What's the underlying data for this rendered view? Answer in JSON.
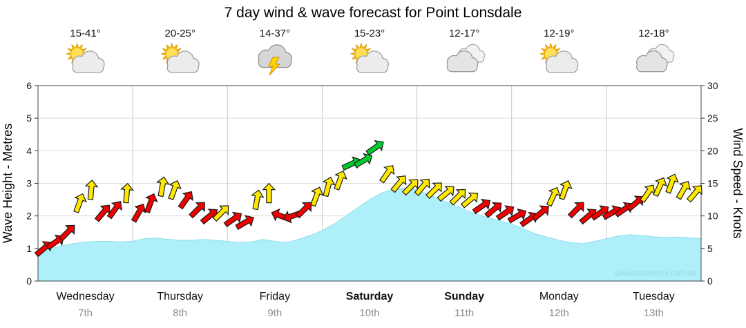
{
  "title": "7 day wind & wave forecast for Point Lonsdale",
  "watermark": "www.seabreeze.com.au",
  "axes": {
    "left_label": "Wave Height - Metres",
    "right_label": "Wind Speed - Knots",
    "wave_ticks": [
      0,
      1,
      2,
      3,
      4,
      5,
      6
    ],
    "knot_ticks": [
      0,
      5,
      10,
      15,
      20,
      25,
      30
    ]
  },
  "days": [
    {
      "name": "Wednesday",
      "date": "7th",
      "temp": "15-41°",
      "icon": "partly-cloudy",
      "weekend": false
    },
    {
      "name": "Thursday",
      "date": "8th",
      "temp": "20-25°",
      "icon": "partly-cloudy",
      "weekend": false
    },
    {
      "name": "Friday",
      "date": "9th",
      "temp": "14-37°",
      "icon": "thunderstorm",
      "weekend": false
    },
    {
      "name": "Saturday",
      "date": "10th",
      "temp": "15-23°",
      "icon": "partly-cloudy",
      "weekend": true
    },
    {
      "name": "Sunday",
      "date": "11th",
      "temp": "12-17°",
      "icon": "cloudy",
      "weekend": true
    },
    {
      "name": "Monday",
      "date": "12th",
      "temp": "12-19°",
      "icon": "partly-cloudy",
      "weekend": false
    },
    {
      "name": "Tuesday",
      "date": "13th",
      "temp": "12-18°",
      "icon": "cloudy",
      "weekend": false
    }
  ],
  "colors": {
    "wave_fill": "#AEEFFA",
    "arrow_red": "#F20000",
    "arrow_yellow": "#FFE800",
    "arrow_green": "#00CC2C",
    "grid": "#DADADA",
    "day_grid": "#C9C9C9",
    "border": "#444444",
    "date_text": "#8C8C8C",
    "watermark": "#96D8E2",
    "text": "#111111"
  },
  "chart_data": {
    "type": "area+wind-arrows",
    "title": "7 day wind & wave forecast for Point Lonsdale",
    "x_categories": [
      "Wednesday 7th",
      "Thursday 8th",
      "Friday 9th",
      "Saturday 10th",
      "Sunday 11th",
      "Monday 12th",
      "Tuesday 13th"
    ],
    "samples_per_day": 8,
    "grid": true,
    "wave": {
      "label": "Wave Height - Metres",
      "ylim": [
        0,
        6
      ],
      "type": "area",
      "values": [
        0.95,
        1.0,
        1.08,
        1.15,
        1.2,
        1.22,
        1.22,
        1.2,
        1.22,
        1.3,
        1.32,
        1.28,
        1.25,
        1.25,
        1.28,
        1.25,
        1.22,
        1.18,
        1.2,
        1.28,
        1.22,
        1.18,
        1.28,
        1.4,
        1.55,
        1.75,
        2.0,
        2.25,
        2.5,
        2.7,
        2.82,
        2.86,
        2.8,
        2.65,
        2.5,
        2.35,
        2.2,
        2.05,
        1.95,
        1.85,
        1.75,
        1.6,
        1.45,
        1.35,
        1.25,
        1.18,
        1.15,
        1.22,
        1.3,
        1.38,
        1.42,
        1.4,
        1.36,
        1.34,
        1.35,
        1.33,
        1.3
      ]
    },
    "wind": {
      "label": "Wind Speed - Knots",
      "ylim": [
        0,
        30
      ],
      "type": "wind-arrows",
      "arrow_format": [
        "knots",
        "color",
        "direction_deg_ccw_from_east"
      ],
      "arrows": [
        [
          5,
          "red",
          40
        ],
        [
          6,
          "red",
          35
        ],
        [
          7.5,
          "red",
          45
        ],
        [
          12,
          "yellow",
          70
        ],
        [
          14,
          "yellow",
          85
        ],
        [
          10.5,
          "red",
          50
        ],
        [
          11,
          "red",
          55
        ],
        [
          13.5,
          "yellow",
          85
        ],
        [
          10.5,
          "red",
          60
        ],
        [
          12,
          "red",
          70
        ],
        [
          14.5,
          "yellow",
          80
        ],
        [
          14,
          "yellow",
          70
        ],
        [
          12.5,
          "red",
          55
        ],
        [
          11,
          "red",
          45
        ],
        [
          10,
          "red",
          40
        ],
        [
          10.5,
          "yellow",
          45
        ],
        [
          9.5,
          "red",
          35
        ],
        [
          9,
          "red",
          30
        ],
        [
          12.5,
          "yellow",
          80
        ],
        [
          13.5,
          "yellow",
          90
        ],
        [
          10,
          "red",
          160
        ],
        [
          10,
          "red",
          200
        ],
        [
          11,
          "red",
          45
        ],
        [
          13,
          "yellow",
          70
        ],
        [
          14.5,
          "yellow",
          75
        ],
        [
          15.5,
          "yellow",
          70
        ],
        [
          18,
          "green",
          25
        ],
        [
          18.5,
          "green",
          30
        ],
        [
          20.5,
          "green",
          35
        ],
        [
          16.5,
          "yellow",
          55
        ],
        [
          15,
          "yellow",
          50
        ],
        [
          14.5,
          "yellow",
          45
        ],
        [
          14.5,
          "yellow",
          50
        ],
        [
          14,
          "yellow",
          45
        ],
        [
          13.5,
          "yellow",
          40
        ],
        [
          13,
          "yellow",
          45
        ],
        [
          12.5,
          "yellow",
          40
        ],
        [
          11.5,
          "red",
          35
        ],
        [
          11,
          "red",
          40
        ],
        [
          10.5,
          "red",
          35
        ],
        [
          10,
          "red",
          30
        ],
        [
          9.5,
          "red",
          35
        ],
        [
          10.5,
          "red",
          40
        ],
        [
          13,
          "yellow",
          65
        ],
        [
          14,
          "yellow",
          70
        ],
        [
          11,
          "red",
          45
        ],
        [
          10,
          "red",
          40
        ],
        [
          10.5,
          "red",
          35
        ],
        [
          10.5,
          "red",
          30
        ],
        [
          11,
          "red",
          35
        ],
        [
          12,
          "red",
          40
        ],
        [
          13.5,
          "yellow",
          55
        ],
        [
          14.5,
          "yellow",
          65
        ],
        [
          15,
          "yellow",
          70
        ],
        [
          14,
          "yellow",
          60
        ],
        [
          13.5,
          "yellow",
          50
        ]
      ]
    }
  }
}
